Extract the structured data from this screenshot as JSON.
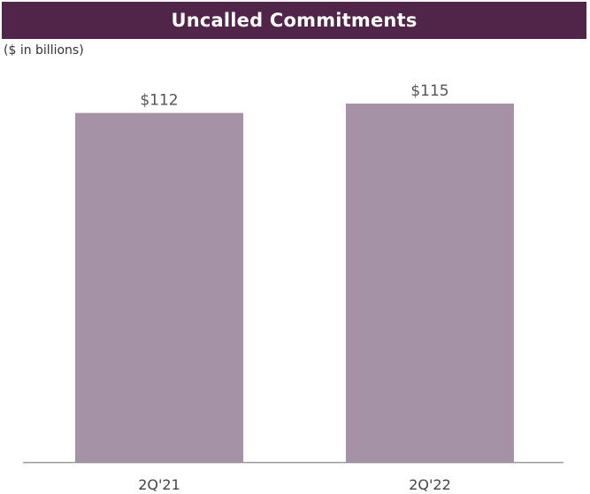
{
  "chart_data": {
    "type": "bar",
    "title": "Uncalled Commitments",
    "subtitle": "($ in billions)",
    "categories": [
      "2Q'21",
      "2Q'22"
    ],
    "values": [
      112,
      115
    ],
    "value_labels": [
      "$112",
      "$115"
    ],
    "ylim": [
      0,
      115
    ],
    "grid": false,
    "legend": "none",
    "xlabel": "",
    "ylabel": ""
  },
  "colors": {
    "banner": "#512449",
    "bar": "#A692A6",
    "axis": "#9a9a9a"
  }
}
